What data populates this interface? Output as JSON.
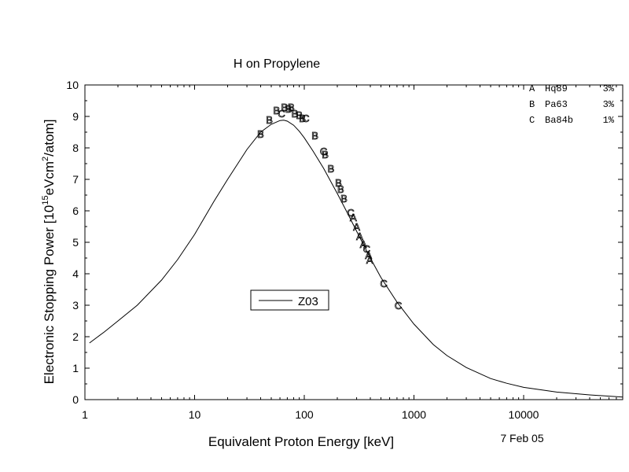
{
  "chart_data": {
    "type": "scatter",
    "title": "H on Propylene",
    "xlabel": "Equivalent Proton Energy [keV]",
    "ylabel": {
      "prefix": "Electronic Stopping Power [10",
      "exp1": "15",
      "mid": "eVcm",
      "exp2": "2",
      "suffix": "/atom]"
    },
    "x_scale": "log",
    "xlim": [
      1,
      80000
    ],
    "ylim": [
      0,
      10
    ],
    "x_ticks": [
      {
        "value": 1,
        "label": "1"
      },
      {
        "value": 10,
        "label": "10"
      },
      {
        "value": 100,
        "label": "100"
      },
      {
        "value": 1000,
        "label": "1000"
      },
      {
        "value": 10000,
        "label": "10000"
      }
    ],
    "y_ticks": [
      0,
      1,
      2,
      3,
      4,
      5,
      6,
      7,
      8,
      9,
      10
    ],
    "curve": {
      "name": "Z03",
      "x": [
        1.1,
        1.5,
        2,
        3,
        5,
        7,
        10,
        15,
        20,
        30,
        40,
        50,
        60,
        65,
        70,
        80,
        90,
        100,
        120,
        150,
        200,
        250,
        300,
        400,
        500,
        700,
        1000,
        1500,
        2000,
        3000,
        5000,
        7000,
        10000,
        20000,
        40000,
        80000
      ],
      "y": [
        1.8,
        2.15,
        2.5,
        3.0,
        3.8,
        4.45,
        5.25,
        6.3,
        7.0,
        7.95,
        8.5,
        8.75,
        8.87,
        8.88,
        8.85,
        8.72,
        8.53,
        8.32,
        7.9,
        7.35,
        6.55,
        5.9,
        5.35,
        4.5,
        3.88,
        3.1,
        2.4,
        1.75,
        1.4,
        1.02,
        0.67,
        0.52,
        0.39,
        0.24,
        0.15,
        0.08
      ]
    },
    "points": [
      {
        "dataset": "B",
        "x": 40,
        "y": 8.45
      },
      {
        "dataset": "B",
        "x": 48,
        "y": 8.9
      },
      {
        "dataset": "B",
        "x": 56,
        "y": 9.2
      },
      {
        "dataset": "C",
        "x": 62,
        "y": 9.1
      },
      {
        "dataset": "B",
        "x": 66,
        "y": 9.3
      },
      {
        "dataset": "B",
        "x": 72,
        "y": 9.25
      },
      {
        "dataset": "B",
        "x": 76,
        "y": 9.3
      },
      {
        "dataset": "B",
        "x": 82,
        "y": 9.1
      },
      {
        "dataset": "B",
        "x": 90,
        "y": 9.05
      },
      {
        "dataset": "B",
        "x": 96,
        "y": 8.95
      },
      {
        "dataset": "C",
        "x": 103,
        "y": 8.95
      },
      {
        "dataset": "B",
        "x": 125,
        "y": 8.4
      },
      {
        "dataset": "C",
        "x": 150,
        "y": 7.9
      },
      {
        "dataset": "B",
        "x": 155,
        "y": 7.8
      },
      {
        "dataset": "B",
        "x": 175,
        "y": 7.35
      },
      {
        "dataset": "B",
        "x": 205,
        "y": 6.9
      },
      {
        "dataset": "B",
        "x": 215,
        "y": 6.7
      },
      {
        "dataset": "B",
        "x": 230,
        "y": 6.4
      },
      {
        "dataset": "C",
        "x": 265,
        "y": 5.95
      },
      {
        "dataset": "A",
        "x": 280,
        "y": 5.8
      },
      {
        "dataset": "A",
        "x": 300,
        "y": 5.5
      },
      {
        "dataset": "A",
        "x": 320,
        "y": 5.2
      },
      {
        "dataset": "A",
        "x": 345,
        "y": 4.95
      },
      {
        "dataset": "C",
        "x": 370,
        "y": 4.8
      },
      {
        "dataset": "A",
        "x": 385,
        "y": 4.6
      },
      {
        "dataset": "A",
        "x": 395,
        "y": 4.45
      },
      {
        "dataset": "C",
        "x": 530,
        "y": 3.7
      },
      {
        "dataset": "C",
        "x": 720,
        "y": 3.0
      }
    ],
    "datasets": [
      {
        "letter": "A",
        "name": "Hq89",
        "uncertainty": "3%"
      },
      {
        "letter": "B",
        "name": "Pa63",
        "uncertainty": "3%"
      },
      {
        "letter": "C",
        "name": "Ba84b",
        "uncertainty": "1%"
      }
    ],
    "legend": {
      "label": "Z03",
      "placement": "center-left"
    },
    "grid": false,
    "date": "7 Feb 05"
  }
}
